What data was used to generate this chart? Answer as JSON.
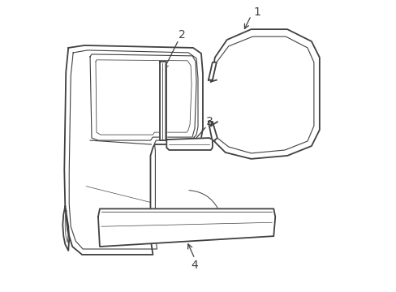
{
  "background_color": "#ffffff",
  "line_color": "#404040",
  "figsize": [
    4.89,
    3.6
  ],
  "dpi": 100,
  "label_fontsize": 10
}
